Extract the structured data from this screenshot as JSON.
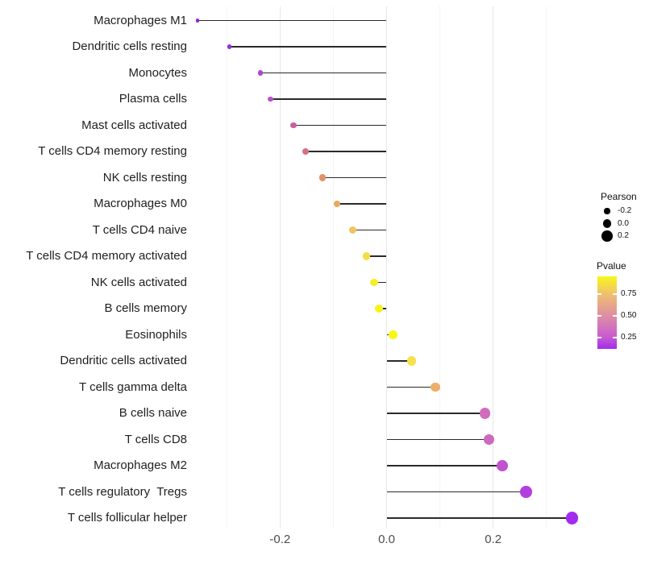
{
  "chart_data": {
    "type": "scatter",
    "variant": "lollipop",
    "title": "",
    "xlabel": "",
    "ylabel": "",
    "xlim": [
      -0.38,
      0.38
    ],
    "x_ticks": [
      {
        "label": "-0.2",
        "value": -0.2,
        "major": true
      },
      {
        "label": "0.0",
        "value": 0.0,
        "major": true
      },
      {
        "label": "0.2",
        "value": 0.2,
        "major": true
      }
    ],
    "x_minor_gridlines": [
      -0.3,
      -0.1,
      0.1,
      0.3
    ],
    "grid": "vertical-only",
    "legend_position": "right",
    "rows": [
      {
        "label": "Macrophages M1",
        "pearson": -0.355,
        "pvalue": 0.01,
        "color": "#8926D9"
      },
      {
        "label": "Dendritic cells resting",
        "pearson": -0.295,
        "pvalue": 0.05,
        "color": "#9531DA"
      },
      {
        "label": "Monocytes",
        "pearson": -0.237,
        "pvalue": 0.13,
        "color": "#AE44D6"
      },
      {
        "label": "Plasma cells",
        "pearson": -0.218,
        "pvalue": 0.18,
        "color": "#BB50CE"
      },
      {
        "label": "Mast cells activated",
        "pearson": -0.175,
        "pvalue": 0.28,
        "color": "#C75F9E"
      },
      {
        "label": "T cells CD4 memory resting",
        "pearson": -0.152,
        "pvalue": 0.36,
        "color": "#D4727F"
      },
      {
        "label": "NK cells resting",
        "pearson": -0.12,
        "pvalue": 0.48,
        "color": "#E29366"
      },
      {
        "label": "Macrophages M0",
        "pearson": -0.093,
        "pvalue": 0.56,
        "color": "#EAA95C"
      },
      {
        "label": "T cells CD4 naive",
        "pearson": -0.064,
        "pvalue": 0.66,
        "color": "#F0C45E"
      },
      {
        "label": "T cells CD4 memory activated",
        "pearson": -0.038,
        "pvalue": 0.76,
        "color": "#F4DD44"
      },
      {
        "label": "NK cells activated",
        "pearson": -0.023,
        "pvalue": 0.85,
        "color": "#F6EE26"
      },
      {
        "label": "B cells memory",
        "pearson": -0.014,
        "pvalue": 0.9,
        "color": "#F7F318"
      },
      {
        "label": "Eosinophils",
        "pearson": 0.012,
        "pvalue": 0.95,
        "color": "#F8F614"
      },
      {
        "label": "Dendritic cells activated",
        "pearson": 0.047,
        "pvalue": 0.78,
        "color": "#F6E14E"
      },
      {
        "label": "T cells gamma delta",
        "pearson": 0.092,
        "pvalue": 0.58,
        "color": "#EDB069"
      },
      {
        "label": "B cells naive",
        "pearson": 0.185,
        "pvalue": 0.24,
        "color": "#D06BBE"
      },
      {
        "label": "T cells CD8",
        "pearson": 0.192,
        "pvalue": 0.23,
        "color": "#CE69C0"
      },
      {
        "label": "Macrophages M2",
        "pearson": 0.217,
        "pvalue": 0.18,
        "color": "#C253CF"
      },
      {
        "label": "T cells regulatory  Tregs",
        "pearson": 0.262,
        "pvalue": 0.11,
        "color": "#B43FE0"
      },
      {
        "label": "T cells follicular helper",
        "pearson": 0.348,
        "pvalue": 0.03,
        "color": "#A32BEE"
      }
    ],
    "size_legend": {
      "title": "Pearson",
      "entries": [
        {
          "label": "-0.2",
          "value": -0.2
        },
        {
          "label": "0.0",
          "value": 0.0
        },
        {
          "label": "0.2",
          "value": 0.2
        }
      ],
      "dot_color": "#000000"
    },
    "color_legend": {
      "title": "Pvalue",
      "ticks": [
        {
          "label": "0.75",
          "value": 0.75
        },
        {
          "label": "0.50",
          "value": 0.5
        },
        {
          "label": "0.25",
          "value": 0.25
        }
      ],
      "range_top": 0.95,
      "range_bottom": 0.12,
      "gradient_stops": [
        {
          "pos": 0.0,
          "color": "#F8F71A"
        },
        {
          "pos": 0.24,
          "color": "#F0C06E"
        },
        {
          "pos": 0.54,
          "color": "#DE8FA4"
        },
        {
          "pos": 0.84,
          "color": "#C75BD0"
        },
        {
          "pos": 1.0,
          "color": "#A32BEE"
        }
      ]
    }
  },
  "colors": {
    "segment": "#2a2a2a",
    "grid_major": "#e7e7e7",
    "grid_minor": "#f4f4f4",
    "axis_tick_text": "#4d4d4d",
    "category_text": "#1f1f1f",
    "background": "#ffffff"
  }
}
